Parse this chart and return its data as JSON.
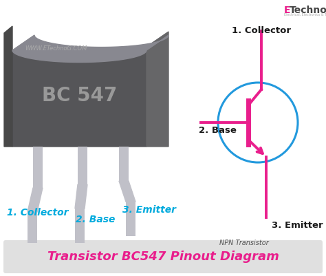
{
  "bg_color": "#ffffff",
  "title_bar_color": "#e0e0e0",
  "title_text": "Transistor BC547 Pinout Diagram",
  "title_color": "#e91e8c",
  "title_fontsize": 13,
  "body_front_color": "#555558",
  "body_side_color": "#666668",
  "body_top_color": "#888890",
  "lead_color": "#c0c0c8",
  "label_color": "#00aadd",
  "website_text": "WWW.ETechnoG.COM",
  "website_color": "#999999",
  "bc547_text": "BC 547",
  "bc547_color": "#888888",
  "npn_color": "#e91e8c",
  "circle_color": "#2299dd",
  "collector_label": "1. Collector",
  "base_label": "2. Base",
  "emitter_label": "3. Emitter",
  "npn_label": "NPN Transistor",
  "etechnog_E_color": "#e91e8c",
  "etechnog_rest_color": "#444444"
}
